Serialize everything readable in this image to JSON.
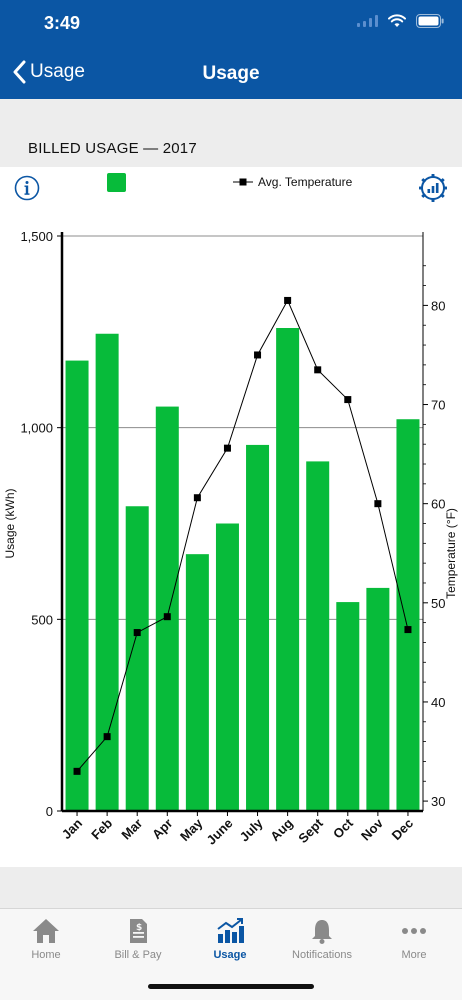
{
  "status_bar": {
    "time": "3:49"
  },
  "nav": {
    "back_label": "Usage",
    "title": "Usage"
  },
  "section": {
    "title": "BILLED USAGE — 2017"
  },
  "legend": {
    "temperature_label": "Avg. Temperature"
  },
  "colors": {
    "header": "#0b56a4",
    "usage_bar": "#07bb3a",
    "temperature_line": "#000000",
    "tab_active": "#0b56a4"
  },
  "chart_data": {
    "type": "bar",
    "title": "",
    "categories": [
      "Jan",
      "Feb",
      "Mar",
      "Apr",
      "May",
      "June",
      "July",
      "Aug",
      "Sept",
      "Oct",
      "Nov",
      "Dec"
    ],
    "series": [
      {
        "name": "",
        "type": "bar",
        "axis": "left",
        "values": [
          1175,
          1245,
          795,
          1055,
          670,
          750,
          955,
          1260,
          912,
          545,
          582,
          1022
        ]
      },
      {
        "name": "Avg. Temperature",
        "type": "line",
        "axis": "right",
        "values": [
          33,
          36.5,
          47,
          48.6,
          60.6,
          65.6,
          75,
          80.5,
          73.5,
          70.5,
          60,
          47.3
        ]
      }
    ],
    "ylabel": "Usage (kWh)",
    "y2label": "Temperature (°F)",
    "ylim": [
      0,
      1500
    ],
    "y2lim": [
      29,
      87
    ],
    "yticks": [
      0,
      500,
      1000,
      1500
    ],
    "ytick_labels": [
      "0",
      "500",
      "1,000",
      "1,500"
    ],
    "y2ticks": [
      30,
      40,
      50,
      60,
      70,
      80
    ],
    "grid": "horizontal"
  },
  "tabbar": {
    "items": [
      {
        "id": "home",
        "label": "Home",
        "icon": "house-icon"
      },
      {
        "id": "bill",
        "label": "Bill & Pay",
        "icon": "bill-icon"
      },
      {
        "id": "usage",
        "label": "Usage",
        "icon": "usage-chart-icon"
      },
      {
        "id": "notifications",
        "label": "Notifications",
        "icon": "bell-icon"
      },
      {
        "id": "more",
        "label": "More",
        "icon": "ellipsis-icon"
      }
    ],
    "active": "usage"
  }
}
